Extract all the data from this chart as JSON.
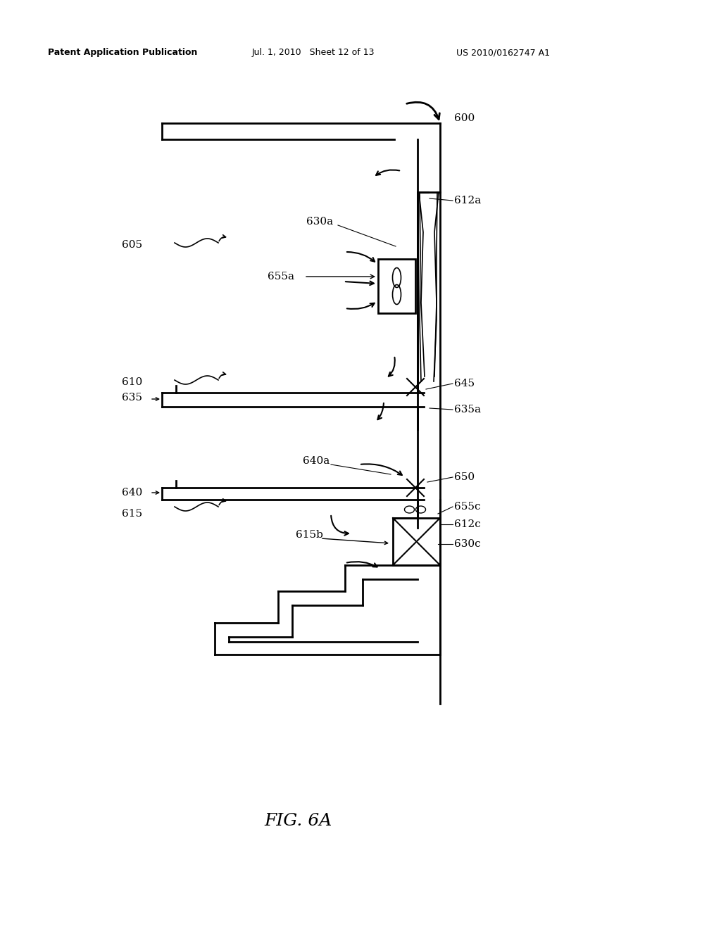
{
  "background_color": "#ffffff",
  "header_left": "Patent Application Publication",
  "header_mid": "Jul. 1, 2010   Sheet 12 of 13",
  "header_right": "US 2010/0162747 A1",
  "figure_label": "FIG. 6A",
  "label_fontsize": 11,
  "header_fontsize": 9
}
